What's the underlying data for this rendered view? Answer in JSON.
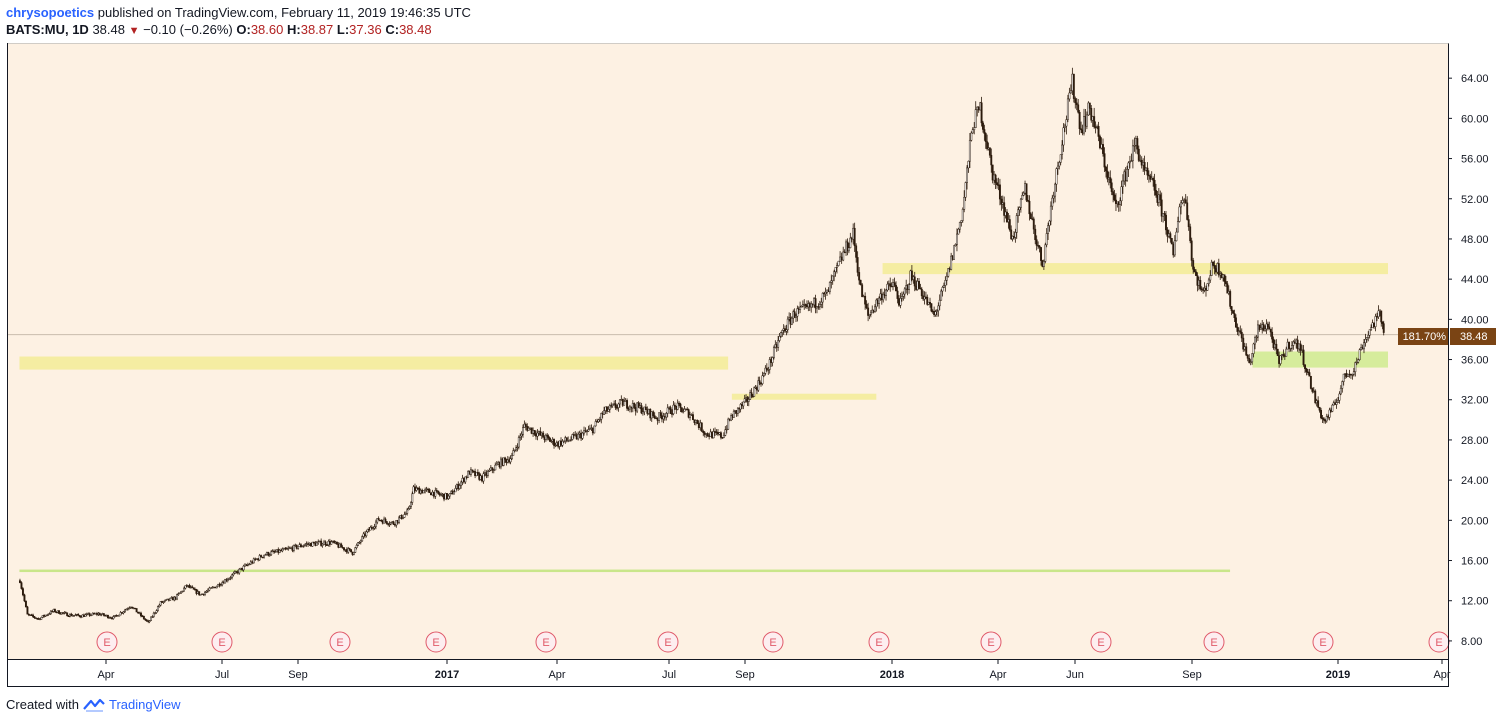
{
  "header": {
    "user": "chrysopoetics",
    "published": "published on TradingView.com, February 11, 2019 19:46:35 UTC",
    "symbol": "BATS:MU, 1D",
    "last": "38.48",
    "change": "−0.10 (−0.26%)",
    "o_label": "O:",
    "o_value": "38.60",
    "h_label": "H:",
    "h_value": "38.87",
    "l_label": "L:",
    "l_value": "37.36",
    "c_label": "C:",
    "c_value": "38.48"
  },
  "footer": {
    "created_with": "Created with",
    "brand": "TradingView"
  },
  "colors": {
    "background": "#fdf1e3",
    "candle": "#2b1a0c",
    "yellow_zone": "#f5eda2",
    "green_zone": "#d6ec9c",
    "green_line": "#c9e68a",
    "price_badge": "#7a4414",
    "earnings": "#e05a6a"
  },
  "chart_data": {
    "type": "candlestick",
    "symbol": "BATS:MU",
    "interval": "1D",
    "ylim": [
      6.2,
      67.5
    ],
    "y_ticks": [
      "64.00",
      "60.00",
      "56.00",
      "52.00",
      "48.00",
      "44.00",
      "40.00",
      "36.00",
      "32.00",
      "28.00",
      "24.00",
      "20.00",
      "16.00",
      "12.00",
      "8.00"
    ],
    "x_ticks": [
      {
        "label": "Apr",
        "bold": false
      },
      {
        "label": "Jul",
        "bold": false
      },
      {
        "label": "Sep",
        "bold": false
      },
      {
        "label": "2017",
        "bold": true
      },
      {
        "label": "Apr",
        "bold": false
      },
      {
        "label": "Jul",
        "bold": false
      },
      {
        "label": "Sep",
        "bold": false
      },
      {
        "label": "2018",
        "bold": true
      },
      {
        "label": "Apr",
        "bold": false
      },
      {
        "label": "Jun",
        "bold": false
      },
      {
        "label": "Sep",
        "bold": false
      },
      {
        "label": "2019",
        "bold": true
      },
      {
        "label": "Apr",
        "bold": false
      }
    ],
    "earnings_marker": "E",
    "earnings_count": 13,
    "last_price": "38.48",
    "last_change_pct": "181.70%",
    "price_path": [
      [
        "2016-02-11",
        14.0
      ],
      [
        "2016-02-17",
        10.6
      ],
      [
        "2016-02-26",
        10.2
      ],
      [
        "2016-03-09",
        11.0
      ],
      [
        "2016-03-21",
        10.6
      ],
      [
        "2016-03-31",
        10.5
      ],
      [
        "2016-04-14",
        10.7
      ],
      [
        "2016-04-26",
        10.3
      ],
      [
        "2016-05-10",
        11.5
      ],
      [
        "2016-05-24",
        9.8
      ],
      [
        "2016-06-03",
        11.8
      ],
      [
        "2016-06-15",
        12.3
      ],
      [
        "2016-06-24",
        13.5
      ],
      [
        "2016-07-05",
        12.6
      ],
      [
        "2016-07-18",
        13.5
      ],
      [
        "2016-07-28",
        14.3
      ],
      [
        "2016-08-12",
        15.6
      ],
      [
        "2016-08-25",
        16.6
      ],
      [
        "2016-09-10",
        17.0
      ],
      [
        "2016-09-27",
        17.6
      ],
      [
        "2016-10-18",
        17.8
      ],
      [
        "2016-11-04",
        16.8
      ],
      [
        "2016-11-14",
        18.6
      ],
      [
        "2016-11-25",
        20.1
      ],
      [
        "2016-12-07",
        19.7
      ],
      [
        "2016-12-19",
        20.9
      ],
      [
        "2016-12-23",
        23.1
      ],
      [
        "2017-01-06",
        22.8
      ],
      [
        "2017-01-20",
        22.3
      ],
      [
        "2017-02-06",
        24.8
      ],
      [
        "2017-02-16",
        24.2
      ],
      [
        "2017-03-01",
        25.6
      ],
      [
        "2017-03-12",
        26.3
      ],
      [
        "2017-03-22",
        29.4
      ],
      [
        "2017-04-05",
        28.4
      ],
      [
        "2017-04-17",
        27.6
      ],
      [
        "2017-05-03",
        28.3
      ],
      [
        "2017-05-16",
        29.1
      ],
      [
        "2017-05-25",
        30.8
      ],
      [
        "2017-06-09",
        31.7
      ],
      [
        "2017-06-24",
        31.1
      ],
      [
        "2017-07-07",
        30.2
      ],
      [
        "2017-07-22",
        31.3
      ],
      [
        "2017-08-02",
        30.6
      ],
      [
        "2017-08-15",
        28.6
      ],
      [
        "2017-08-28",
        28.4
      ],
      [
        "2017-09-04",
        30.3
      ],
      [
        "2017-09-16",
        31.8
      ],
      [
        "2017-09-28",
        34.0
      ],
      [
        "2017-10-05",
        35.6
      ],
      [
        "2017-10-14",
        38.5
      ],
      [
        "2017-10-25",
        40.6
      ],
      [
        "2017-11-05",
        41.1
      ],
      [
        "2017-11-20",
        42.5
      ],
      [
        "2017-11-28",
        45.0
      ],
      [
        "2017-12-03",
        46.5
      ],
      [
        "2017-12-11",
        48.5
      ],
      [
        "2017-12-17",
        43.0
      ],
      [
        "2017-12-23",
        40.3
      ],
      [
        "2018-01-03",
        42.5
      ],
      [
        "2018-01-12",
        43.5
      ],
      [
        "2018-01-18",
        41.5
      ],
      [
        "2018-01-26",
        44.3
      ],
      [
        "2018-02-03",
        43.0
      ],
      [
        "2018-02-14",
        40.3
      ],
      [
        "2018-02-23",
        43.5
      ],
      [
        "2018-03-02",
        47.0
      ],
      [
        "2018-03-09",
        51.0
      ],
      [
        "2018-03-17",
        59.5
      ],
      [
        "2018-03-23",
        61.0
      ],
      [
        "2018-04-02",
        54.5
      ],
      [
        "2018-04-09",
        52.0
      ],
      [
        "2018-04-18",
        48.0
      ],
      [
        "2018-04-28",
        53.0
      ],
      [
        "2018-05-05",
        49.0
      ],
      [
        "2018-05-12",
        45.5
      ],
      [
        "2018-05-21",
        53.0
      ],
      [
        "2018-05-30",
        59.5
      ],
      [
        "2018-06-05",
        63.5
      ],
      [
        "2018-06-12",
        59.0
      ],
      [
        "2018-06-19",
        61.0
      ],
      [
        "2018-06-26",
        58.0
      ],
      [
        "2018-07-02",
        55.0
      ],
      [
        "2018-07-10",
        51.0
      ],
      [
        "2018-07-20",
        55.5
      ],
      [
        "2018-07-26",
        57.5
      ],
      [
        "2018-08-02",
        54.5
      ],
      [
        "2018-08-10",
        53.0
      ],
      [
        "2018-08-18",
        50.0
      ],
      [
        "2018-08-25",
        46.3
      ],
      [
        "2018-08-30",
        51.5
      ],
      [
        "2018-09-04",
        52.0
      ],
      [
        "2018-09-10",
        45.0
      ],
      [
        "2018-09-18",
        42.5
      ],
      [
        "2018-09-26",
        45.5
      ],
      [
        "2018-10-04",
        44.6
      ],
      [
        "2018-10-12",
        40.5
      ],
      [
        "2018-10-19",
        38.0
      ],
      [
        "2018-10-25",
        35.5
      ],
      [
        "2018-11-01",
        39.0
      ],
      [
        "2018-11-09",
        39.5
      ],
      [
        "2018-11-18",
        35.6
      ],
      [
        "2018-11-26",
        37.6
      ],
      [
        "2018-12-04",
        37.5
      ],
      [
        "2018-12-10",
        35.0
      ],
      [
        "2018-12-17",
        32.0
      ],
      [
        "2018-12-24",
        29.8
      ],
      [
        "2019-01-02",
        31.5
      ],
      [
        "2019-01-10",
        34.5
      ],
      [
        "2019-01-17",
        35.0
      ],
      [
        "2019-01-24",
        37.5
      ],
      [
        "2019-02-01",
        39.5
      ],
      [
        "2019-02-07",
        40.5
      ],
      [
        "2019-02-11",
        38.48
      ]
    ],
    "zones": [
      {
        "color": "yellow",
        "start": "2016-02-11",
        "end": "2017-09-02",
        "low": 35.0,
        "high": 36.3
      },
      {
        "color": "yellow",
        "start": "2017-09-05",
        "end": "2017-12-30",
        "low": 32.0,
        "high": 32.6
      },
      {
        "color": "yellow",
        "start": "2018-01-04",
        "end": "2019-02-26",
        "low": 44.5,
        "high": 45.6
      },
      {
        "color": "green",
        "start": "2018-10-28",
        "end": "2019-02-26",
        "low": 35.2,
        "high": 36.8
      },
      {
        "color": "green_line",
        "start": "2016-02-11",
        "end": "2018-10-10",
        "low": 14.9,
        "high": 15.1
      }
    ]
  }
}
